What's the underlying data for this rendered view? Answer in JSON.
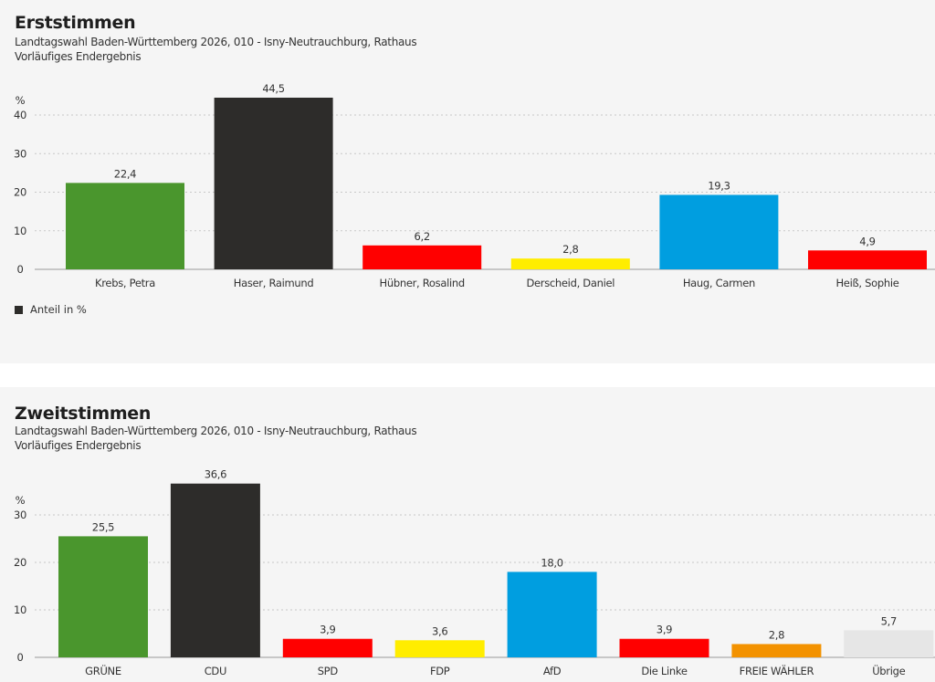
{
  "colors": {
    "green": "#4a962d",
    "dark": "#2d2c2a",
    "red": "#ff0000",
    "yellow": "#ffed00",
    "blue": "#009ee0",
    "orange": "#f39200",
    "grey": "#e6e6e6"
  },
  "chart_data": [
    {
      "type": "bar",
      "title": "Erststimmen",
      "subtitle": "Landtagswahl Baden-Württemberg 2026, 010 - Isny-Neutrauchburg, Rathaus",
      "status": "Vorläufiges Endergebnis",
      "ylabel": "%",
      "ylim": [
        0,
        45
      ],
      "yticks": [
        0,
        10,
        20,
        30,
        40
      ],
      "grid": true,
      "categories": [
        "Krebs, Petra",
        "Haser, Raimund",
        "Hübner, Rosalind",
        "Derscheid, Daniel",
        "Haug, Carmen",
        "Heiß, Sophie"
      ],
      "values": [
        22.4,
        44.5,
        6.2,
        2.8,
        19.3,
        4.9
      ],
      "value_labels": [
        "22,4",
        "44,5",
        "6,2",
        "2,8",
        "19,3",
        "4,9"
      ],
      "bar_colors": [
        "#4a962d",
        "#2d2c2a",
        "#ff0000",
        "#ffed00",
        "#009ee0",
        "#ff0000"
      ],
      "legend": "Anteil in %"
    },
    {
      "type": "bar",
      "title": "Zweitstimmen",
      "subtitle": "Landtagswahl Baden-Württemberg 2026, 010 - Isny-Neutrauchburg, Rathaus",
      "status": "Vorläufiges Endergebnis",
      "ylabel": "%",
      "ylim": [
        0,
        37
      ],
      "yticks": [
        0,
        10,
        20,
        30
      ],
      "grid": true,
      "categories": [
        "GRÜNE",
        "CDU",
        "SPD",
        "FDP",
        "AfD",
        "Die Linke",
        "FREIE WÄHLER",
        "Übrige"
      ],
      "values": [
        25.5,
        36.6,
        3.9,
        3.6,
        18.0,
        3.9,
        2.8,
        5.7
      ],
      "value_labels": [
        "25,5",
        "36,6",
        "3,9",
        "3,6",
        "18,0",
        "3,9",
        "2,8",
        "5,7"
      ],
      "bar_colors": [
        "#4a962d",
        "#2d2c2a",
        "#ff0000",
        "#ffed00",
        "#009ee0",
        "#ff0000",
        "#f39200",
        "#e6e6e6"
      ]
    }
  ]
}
